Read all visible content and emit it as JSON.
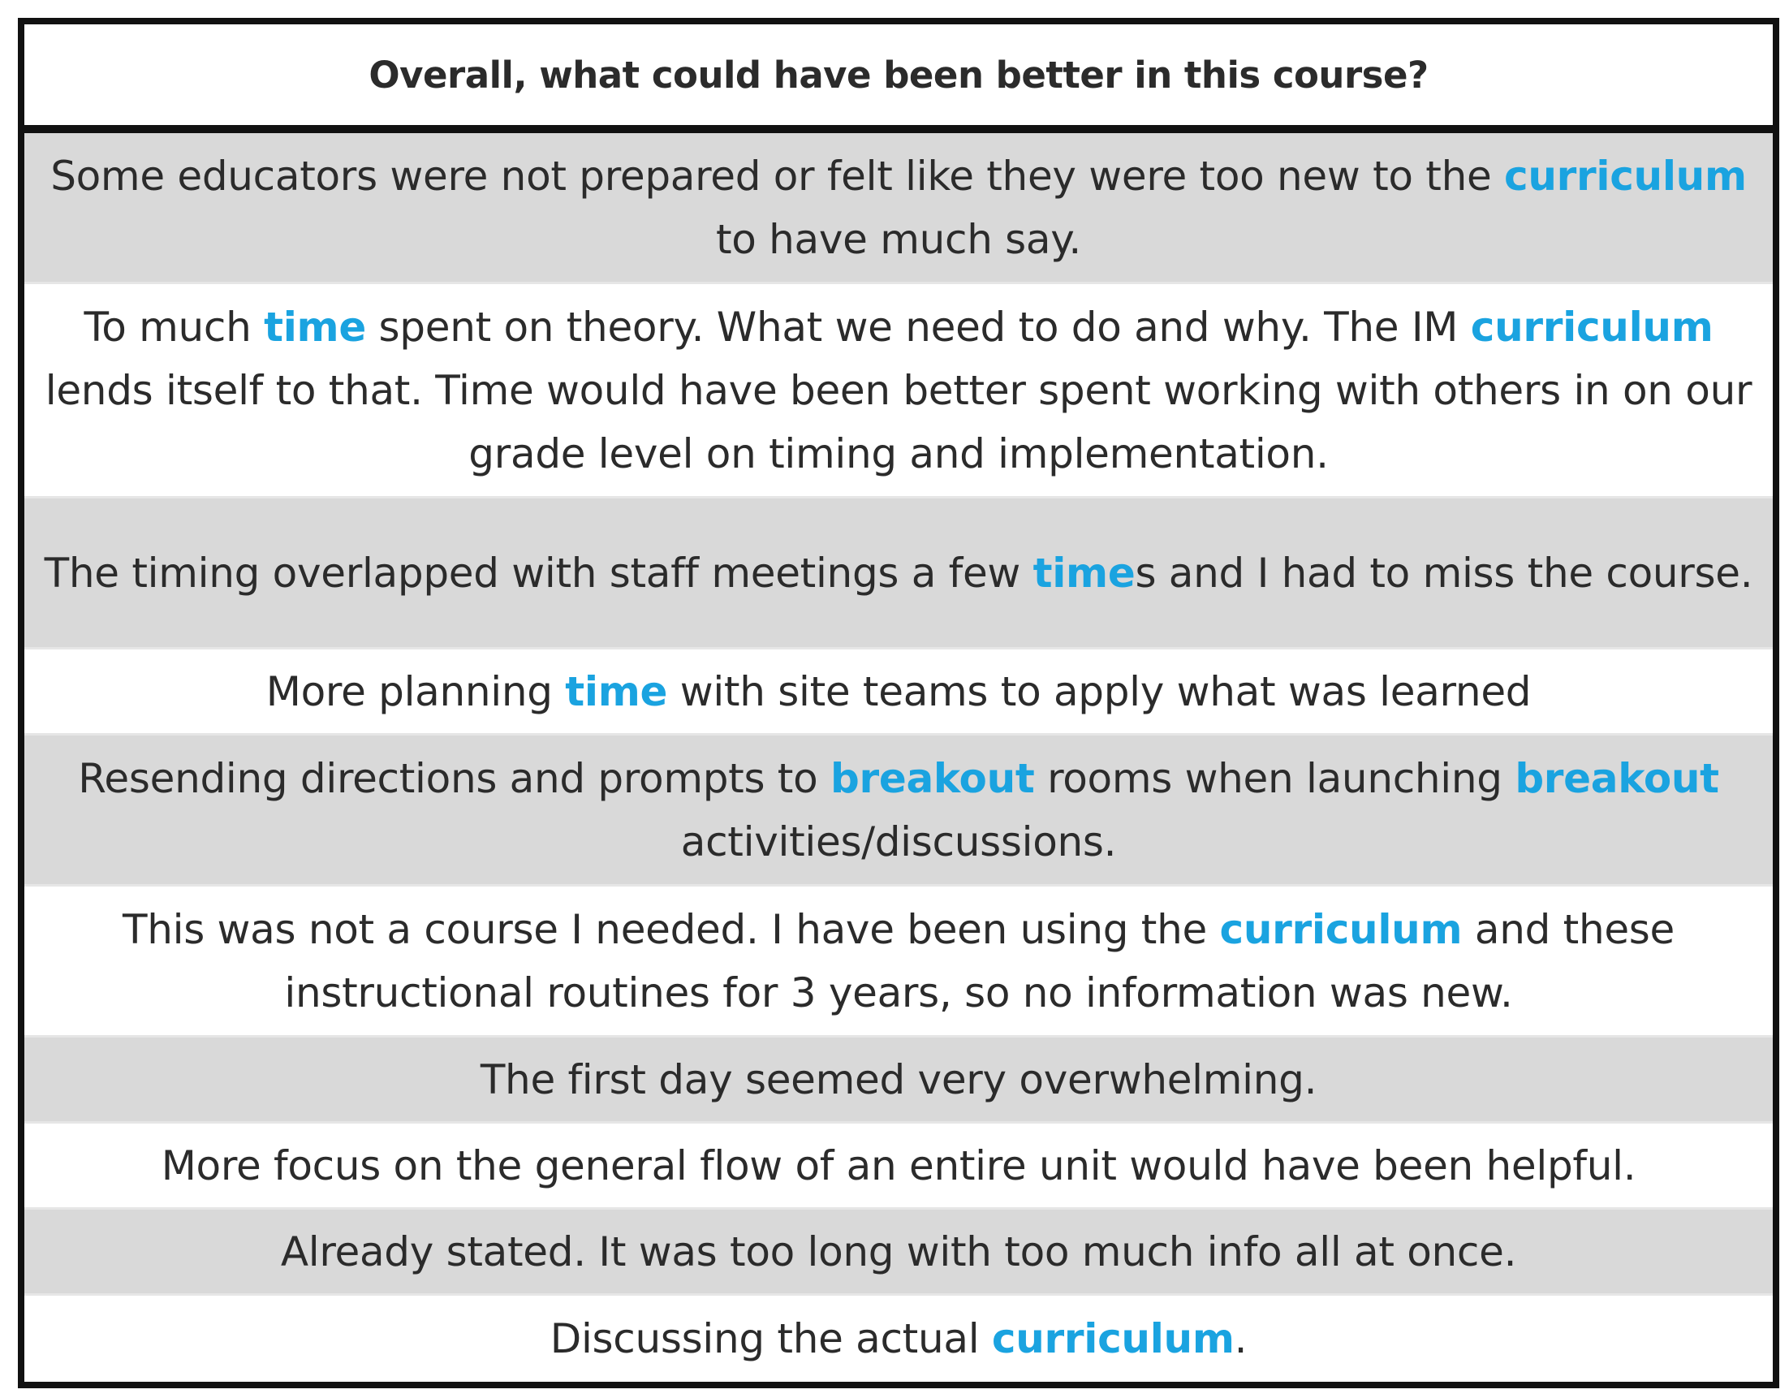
{
  "table": {
    "header": "Overall, what could have been better in this course?",
    "accent_color": "#1aa3e0",
    "shade_color": "#d9d9d9",
    "rows": [
      {
        "shaded": true,
        "segments": [
          {
            "text": "Some educators were not prepared or felt like they were too new to the ",
            "highlight": false
          },
          {
            "text": "curriculum",
            "highlight": true
          },
          {
            "text": " to have much say.",
            "highlight": false
          }
        ]
      },
      {
        "shaded": false,
        "segments": [
          {
            "text": "To much ",
            "highlight": false
          },
          {
            "text": "time",
            "highlight": true
          },
          {
            "text": " spent on theory. What we need to do and why. The IM ",
            "highlight": false
          },
          {
            "text": "curriculum",
            "highlight": true
          },
          {
            "text": " lends itself to that. Time would have been better spent working with others in on our grade level on timing and implementation.",
            "highlight": false
          }
        ]
      },
      {
        "shaded": true,
        "segments": [
          {
            "text": "The timing overlapped with staff meetings a few ",
            "highlight": false
          },
          {
            "text": "time",
            "highlight": true
          },
          {
            "text": "s and I had to miss the course.",
            "highlight": false
          }
        ]
      },
      {
        "shaded": false,
        "segments": [
          {
            "text": "More planning ",
            "highlight": false
          },
          {
            "text": "time",
            "highlight": true
          },
          {
            "text": " with site teams to apply what was learned",
            "highlight": false
          }
        ]
      },
      {
        "shaded": true,
        "segments": [
          {
            "text": "Resending directions and prompts to ",
            "highlight": false
          },
          {
            "text": "breakout",
            "highlight": true
          },
          {
            "text": " rooms when launching ",
            "highlight": false
          },
          {
            "text": "breakout",
            "highlight": true
          },
          {
            "text": " activities/discussions.",
            "highlight": false
          }
        ]
      },
      {
        "shaded": false,
        "segments": [
          {
            "text": "This was not a course I needed. I have been using the ",
            "highlight": false
          },
          {
            "text": "curriculum",
            "highlight": true
          },
          {
            "text": " and these instructional routines for 3 years, so no information was new.",
            "highlight": false
          }
        ]
      },
      {
        "shaded": true,
        "segments": [
          {
            "text": "The first day seemed very overwhelming.",
            "highlight": false
          }
        ]
      },
      {
        "shaded": false,
        "segments": [
          {
            "text": "More focus on the general flow of an entire unit would have been helpful.",
            "highlight": false
          }
        ]
      },
      {
        "shaded": true,
        "segments": [
          {
            "text": "Already stated. It was too long with too much info all at once.",
            "highlight": false
          }
        ]
      },
      {
        "shaded": false,
        "segments": [
          {
            "text": "Discussing the actual ",
            "highlight": false
          },
          {
            "text": "curriculum",
            "highlight": true
          },
          {
            "text": ".",
            "highlight": false
          }
        ]
      }
    ]
  }
}
